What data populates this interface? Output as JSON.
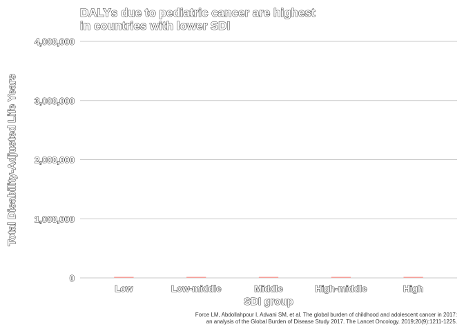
{
  "chart_data": {
    "type": "bar",
    "title_lines": [
      "DALYs due to pediatric cancer are highest",
      "in countries with lower SDI"
    ],
    "xlabel": "SDI group",
    "ylabel": "Total Disability-Adjusted Life Years",
    "categories": [
      "Low",
      "Low-middle",
      "Middle",
      "High-middle",
      "High"
    ],
    "values": [
      0,
      0,
      0,
      0,
      0
    ],
    "ylim": [
      0,
      4000000
    ],
    "yticks": [
      0,
      1000000,
      2000000,
      3000000,
      4000000
    ],
    "ytick_labels": [
      "0",
      "1,000,000",
      "2,000,000",
      "3,000,000",
      "4,000,000"
    ],
    "grid": true,
    "bar_color": "#f4a09a",
    "caption_lines": [
      "Force LM, Abdollahpour I, Advani SM, et al. The global burden of childhood and adolescent cancer in 2017:",
      "an analysis of the Global Burden of Disease Study 2017. The Lancet Oncology. 2019;20(9):1211-1225."
    ]
  }
}
